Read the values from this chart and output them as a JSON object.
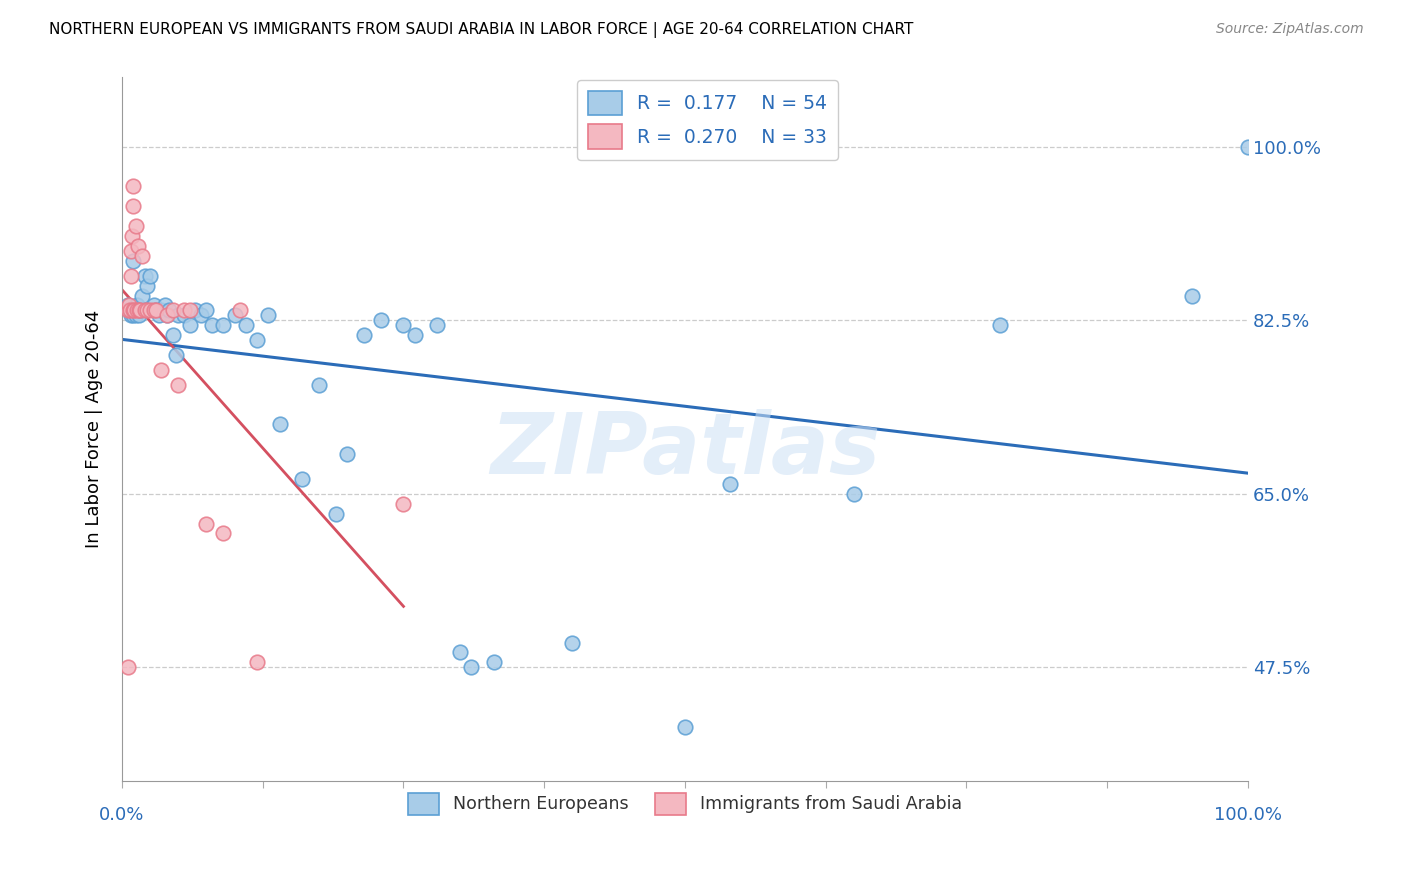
{
  "title": "NORTHERN EUROPEAN VS IMMIGRANTS FROM SAUDI ARABIA IN LABOR FORCE | AGE 20-64 CORRELATION CHART",
  "source": "Source: ZipAtlas.com",
  "ylabel": "In Labor Force | Age 20-64",
  "ytick_vals": [
    0.475,
    0.65,
    0.825,
    1.0
  ],
  "ytick_labels": [
    "47.5%",
    "65.0%",
    "82.5%",
    "100.0%"
  ],
  "xlim": [
    0.0,
    1.0
  ],
  "ylim": [
    0.36,
    1.07
  ],
  "blue_R": 0.177,
  "blue_N": 54,
  "pink_R": 0.27,
  "pink_N": 33,
  "blue_scatter_color": "#a8cce8",
  "blue_scatter_edge": "#5b9fd4",
  "pink_scatter_color": "#f4b8c1",
  "pink_scatter_edge": "#e87a8a",
  "blue_line_color": "#2b6cb8",
  "pink_line_color": "#d45060",
  "legend_blue_label": "Northern Europeans",
  "legend_pink_label": "Immigrants from Saudi Arabia",
  "watermark": "ZIPatlas",
  "blue_x": [
    0.005,
    0.007,
    0.008,
    0.01,
    0.01,
    0.012,
    0.013,
    0.015,
    0.016,
    0.018,
    0.02,
    0.022,
    0.025,
    0.028,
    0.03,
    0.033,
    0.035,
    0.038,
    0.04,
    0.042,
    0.045,
    0.048,
    0.05,
    0.055,
    0.06,
    0.065,
    0.07,
    0.075,
    0.08,
    0.09,
    0.1,
    0.11,
    0.12,
    0.13,
    0.14,
    0.16,
    0.175,
    0.19,
    0.2,
    0.215,
    0.23,
    0.25,
    0.26,
    0.28,
    0.3,
    0.31,
    0.33,
    0.4,
    0.5,
    0.54,
    0.65,
    0.78,
    0.95,
    1.0
  ],
  "blue_y": [
    0.84,
    0.835,
    0.83,
    0.885,
    0.83,
    0.83,
    0.84,
    0.83,
    0.835,
    0.85,
    0.87,
    0.86,
    0.87,
    0.84,
    0.835,
    0.83,
    0.835,
    0.84,
    0.83,
    0.835,
    0.81,
    0.79,
    0.83,
    0.83,
    0.82,
    0.835,
    0.83,
    0.835,
    0.82,
    0.82,
    0.83,
    0.82,
    0.805,
    0.83,
    0.72,
    0.665,
    0.76,
    0.63,
    0.69,
    0.81,
    0.825,
    0.82,
    0.81,
    0.82,
    0.49,
    0.475,
    0.48,
    0.5,
    0.415,
    0.66,
    0.65,
    0.82,
    0.85,
    1.0
  ],
  "pink_x": [
    0.005,
    0.006,
    0.007,
    0.008,
    0.008,
    0.009,
    0.01,
    0.01,
    0.01,
    0.011,
    0.012,
    0.013,
    0.014,
    0.015,
    0.016,
    0.018,
    0.02,
    0.022,
    0.025,
    0.028,
    0.03,
    0.035,
    0.04,
    0.045,
    0.05,
    0.055,
    0.06,
    0.075,
    0.09,
    0.105,
    0.12,
    0.005,
    0.25
  ],
  "pink_y": [
    0.835,
    0.84,
    0.835,
    0.87,
    0.895,
    0.91,
    0.835,
    0.94,
    0.96,
    0.835,
    0.92,
    0.835,
    0.9,
    0.835,
    0.835,
    0.89,
    0.835,
    0.835,
    0.835,
    0.835,
    0.835,
    0.775,
    0.83,
    0.835,
    0.76,
    0.835,
    0.835,
    0.62,
    0.61,
    0.835,
    0.48,
    0.475,
    0.64
  ]
}
